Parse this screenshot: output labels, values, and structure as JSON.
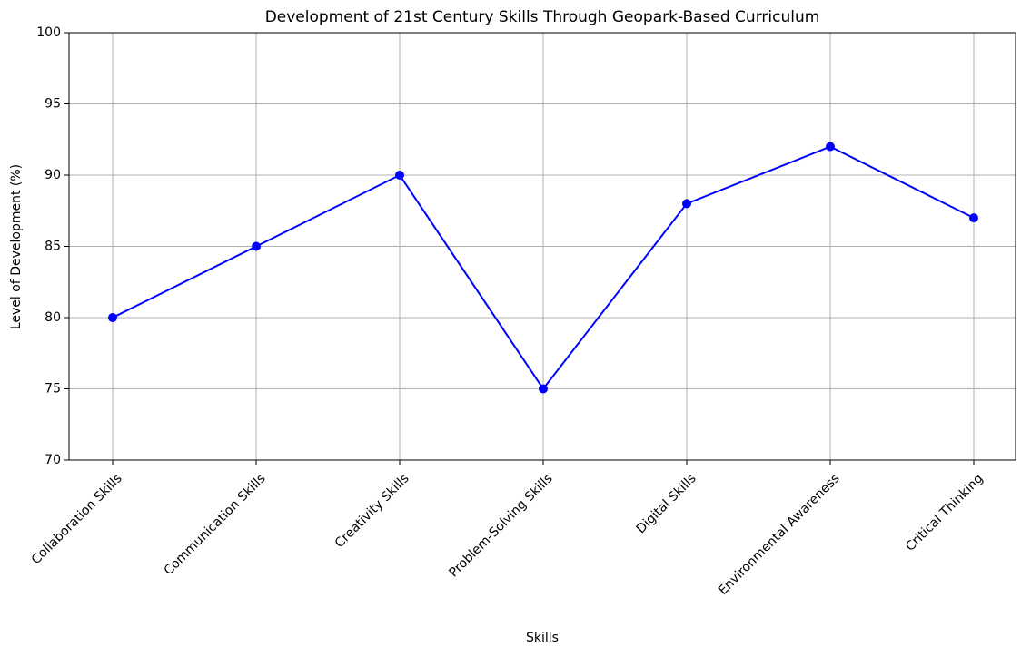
{
  "chart_data": {
    "type": "line",
    "title": "Development of 21st Century Skills Through Geopark-Based Curriculum",
    "xlabel": "Skills",
    "ylabel": "Level of Development (%)",
    "categories": [
      "Collaboration Skills",
      "Communication Skills",
      "Creativity Skills",
      "Problem-Solving Skills",
      "Digital Skills",
      "Environmental Awareness",
      "Critical Thinking"
    ],
    "series": [
      {
        "color": "#0000ff",
        "values": [
          80,
          85,
          90,
          75,
          88,
          92,
          87
        ]
      }
    ],
    "ylim": [
      70,
      100
    ],
    "yticks": [
      70,
      75,
      80,
      85,
      90,
      95,
      100
    ],
    "grid": true
  }
}
